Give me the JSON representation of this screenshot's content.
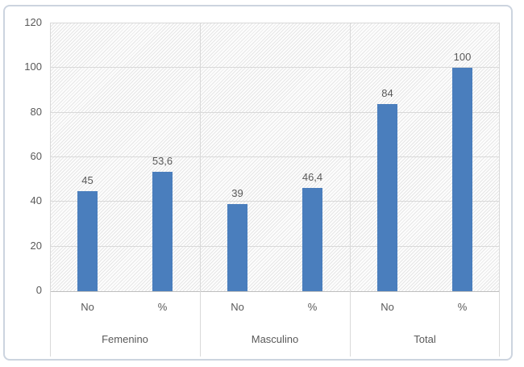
{
  "chart_data": {
    "type": "bar",
    "title": "",
    "legend": "none",
    "grid": true,
    "ylim": [
      0,
      120
    ],
    "yticks": [
      0,
      20,
      40,
      60,
      80,
      100,
      120
    ],
    "ytick_labels": [
      "0",
      "20",
      "40",
      "60",
      "80",
      "100",
      "120"
    ],
    "groups": [
      {
        "label": "Femenino",
        "bars": [
          {
            "category": "No",
            "value": 45,
            "label": "45"
          },
          {
            "category": "%",
            "value": 53.6,
            "label": "53,6"
          }
        ]
      },
      {
        "label": "Masculino",
        "bars": [
          {
            "category": "No",
            "value": 39,
            "label": "39"
          },
          {
            "category": "%",
            "value": 46.4,
            "label": "46,4"
          }
        ]
      },
      {
        "label": "Total",
        "bars": [
          {
            "category": "No",
            "value": 84,
            "label": "84"
          },
          {
            "category": "%",
            "value": 100,
            "label": "100"
          }
        ]
      }
    ],
    "colors": {
      "bar": "#4a7ebd",
      "text": "#595959",
      "gridline": "#d9d9d9",
      "axis_line": "#bfbfbf",
      "frame_border": "#ccd4df",
      "plot_hatch": "#e6e6e6",
      "plot_bg": "#fdfdfd"
    }
  }
}
